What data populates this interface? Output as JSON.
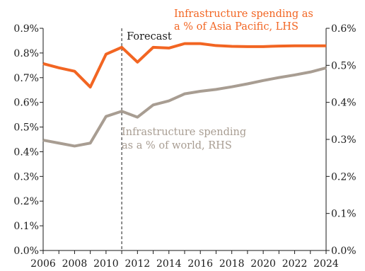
{
  "chart_data": {
    "type": "line",
    "x": [
      2006,
      2007,
      2008,
      2009,
      2010,
      2011,
      2012,
      2013,
      2014,
      2015,
      2016,
      2017,
      2018,
      2019,
      2020,
      2021,
      2022,
      2023,
      2024
    ],
    "x_tick_labels": [
      "2006",
      "2008",
      "2010",
      "2012",
      "2014",
      "2016",
      "2018",
      "2020",
      "2022",
      "2024"
    ],
    "left_axis": {
      "ylim": [
        0,
        0.9
      ],
      "tick_labels": [
        "0.0%",
        "0.1%",
        "0.2%",
        "0.3%",
        "0.4%",
        "0.5%",
        "0.6%",
        "0.7%",
        "0.8%",
        "0.9%"
      ]
    },
    "right_axis": {
      "ylim": [
        0,
        0.6
      ],
      "tick_labels": [
        "0.0%",
        "0.1%",
        "0.2%",
        "0.3%",
        "0.4%",
        "0.5%",
        "0.6%"
      ]
    },
    "series": [
      {
        "name": "Infrastructure spending as a % of Asia Pacific, LHS",
        "axis": "left",
        "color": "#f26522",
        "label_lines": [
          "Infrastructure spending as",
          "a % of Asia Pacific, LHS"
        ],
        "values": [
          0.757,
          0.74,
          0.726,
          0.662,
          0.795,
          0.823,
          0.763,
          0.823,
          0.82,
          0.838,
          0.838,
          0.83,
          0.827,
          0.826,
          0.826,
          0.828,
          0.829,
          0.829,
          0.829
        ]
      },
      {
        "name": "Infrastructure spending as a % of world, RHS",
        "axis": "right",
        "color": "#a89d92",
        "label_lines": [
          "Infrastructure spending",
          "as a % of world, RHS"
        ],
        "values": [
          0.298,
          0.29,
          0.282,
          0.29,
          0.362,
          0.376,
          0.36,
          0.393,
          0.404,
          0.423,
          0.43,
          0.435,
          0.442,
          0.45,
          0.459,
          0.467,
          0.474,
          0.482,
          0.493
        ]
      }
    ],
    "forecast_marker": {
      "x": 2011,
      "label": "Forecast"
    }
  }
}
